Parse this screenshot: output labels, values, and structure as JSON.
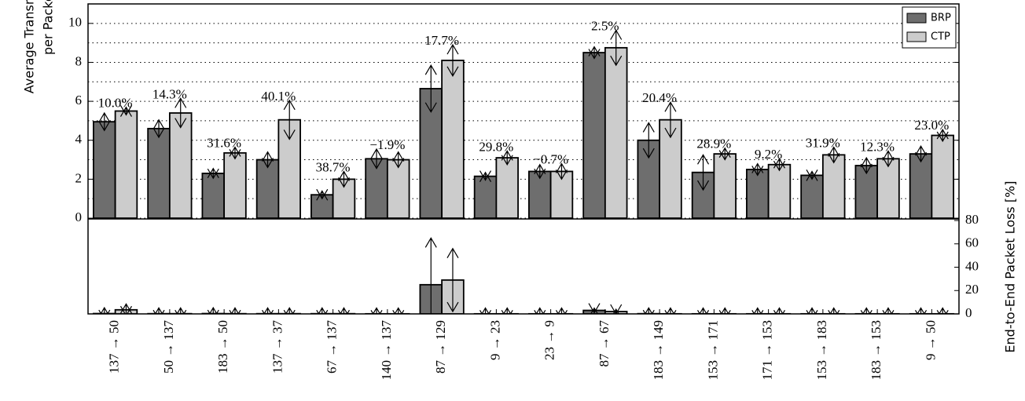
{
  "chart_data": [
    {
      "type": "bar",
      "ylabel": [
        "Average Transmissions",
        "per Packet"
      ],
      "ylim": [
        0,
        11
      ],
      "yticks": [
        0,
        2,
        4,
        6,
        8,
        10
      ],
      "yminorticks": [
        1,
        3,
        5,
        7,
        9
      ],
      "grid": true,
      "legend": "upper right",
      "series": [
        {
          "name": "BRP",
          "color": "#6e6e6e",
          "values": [
            4.95,
            4.6,
            2.3,
            3.0,
            1.2,
            3.05,
            6.65,
            2.15,
            2.4,
            8.5,
            4.0,
            2.35,
            2.5,
            2.2,
            2.7,
            3.3
          ],
          "errors": [
            0.45,
            0.45,
            0.25,
            0.4,
            0.2,
            0.5,
            1.2,
            0.2,
            0.35,
            0.3,
            0.9,
            0.9,
            0.3,
            0.2,
            0.4,
            0.4
          ]
        },
        {
          "name": "CTP",
          "color": "#cccccc",
          "values": [
            5.5,
            5.4,
            3.35,
            5.05,
            2.0,
            3.0,
            8.1,
            3.1,
            2.4,
            8.75,
            5.05,
            3.3,
            2.75,
            3.25,
            3.05,
            4.25
          ],
          "errors": [
            0.2,
            0.75,
            0.3,
            1.0,
            0.4,
            0.4,
            0.8,
            0.35,
            0.4,
            0.9,
            0.9,
            0.3,
            0.3,
            0.4,
            0.4,
            0.3
          ]
        }
      ],
      "annotations": [
        "10.0%",
        "14.3%",
        "31.6%",
        "40.1%",
        "38.7%",
        "−1.9%",
        "17.7%",
        "29.8%",
        "−0.7%",
        "2.5%",
        "20.4%",
        "28.9%",
        "9.2%",
        "31.9%",
        "12.3%",
        "23.0%"
      ]
    },
    {
      "type": "bar",
      "categories": [
        "137 → 50",
        "50 → 137",
        "183 → 50",
        "137 → 37",
        "67 → 137",
        "140 → 137",
        "87 → 129",
        "9 → 23",
        "23 → 9",
        "87 → 67",
        "183 → 149",
        "153 → 171",
        "171 → 153",
        "153 → 183",
        "183 → 153",
        "9 → 50"
      ],
      "ylabel": "End-to-End Packet Loss [%]",
      "ylim": [
        0,
        80
      ],
      "yticks": [
        0,
        20,
        40,
        60,
        80
      ],
      "series": [
        {
          "name": "BRP",
          "color": "#6e6e6e",
          "values": [
            0.3,
            0.2,
            0.3,
            0.2,
            0.2,
            0.1,
            25,
            0.1,
            0.1,
            3,
            0.2,
            0.1,
            0.1,
            0.1,
            0.1,
            0.1
          ],
          "errors": [
            5,
            5,
            5,
            5,
            5,
            5,
            40,
            5,
            5,
            2,
            5,
            5,
            5,
            5,
            5,
            5
          ]
        },
        {
          "name": "CTP",
          "color": "#cccccc",
          "values": [
            3.5,
            0.2,
            0.2,
            0.2,
            0.2,
            0.1,
            29,
            0.1,
            0.1,
            2,
            0.1,
            0.1,
            0.1,
            0.1,
            0.1,
            0.1
          ],
          "errors": [
            5,
            5,
            5,
            5,
            5,
            5,
            27,
            5,
            5,
            2,
            5,
            5,
            5,
            5,
            5,
            5
          ]
        }
      ]
    }
  ]
}
